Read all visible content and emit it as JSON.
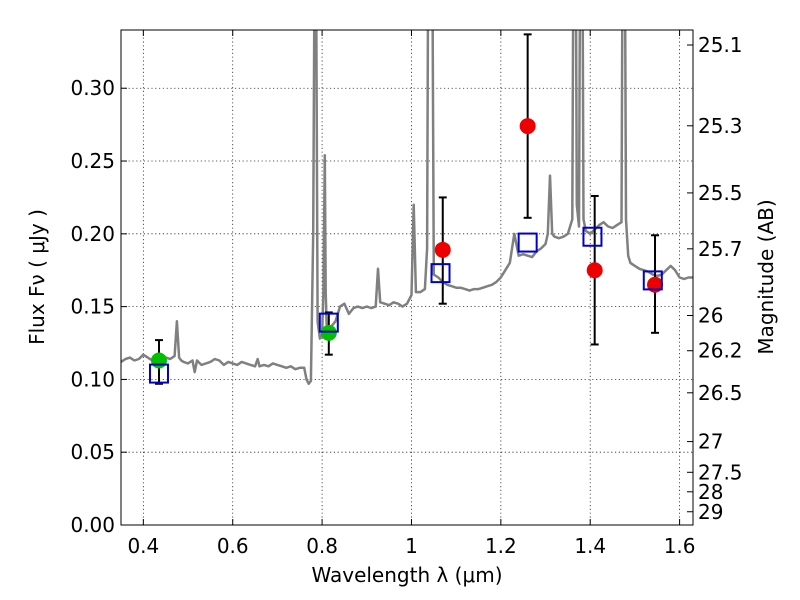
{
  "chart_data": {
    "type": "scatter",
    "title": "",
    "xlabel": "Wavelength  λ (μm)",
    "ylabel": "Flux  Fν  ( μJy )",
    "ylabel_right": "Magnitude (AB)",
    "xlim": [
      0.35,
      1.63
    ],
    "ylim": [
      0.0,
      0.34
    ],
    "grid": true,
    "x_ticks": [
      0.4,
      0.6,
      0.8,
      1.0,
      1.2,
      1.4,
      1.6
    ],
    "x_tick_labels": [
      "0.4",
      "0.6",
      "0.8",
      "1",
      "1.2",
      "1.4",
      "1.6"
    ],
    "y_ticks": [
      0.0,
      0.05,
      0.1,
      0.15,
      0.2,
      0.25,
      0.3
    ],
    "y_tick_labels": [
      "0.00",
      "0.05",
      "0.10",
      "0.15",
      "0.20",
      "0.25",
      "0.30"
    ],
    "right_ticks": [
      {
        "label": "25.1",
        "flux": 0.3297
      },
      {
        "label": "25.3",
        "flux": 0.2742
      },
      {
        "label": "25.5",
        "flux": 0.2281
      },
      {
        "label": "25.7",
        "flux": 0.1897
      },
      {
        "label": "26",
        "flux": 0.1439
      },
      {
        "label": "26.2",
        "flux": 0.1197
      },
      {
        "label": "26.5",
        "flux": 0.0908
      },
      {
        "label": "27",
        "flux": 0.0573
      },
      {
        "label": "27.5",
        "flux": 0.0362
      },
      {
        "label": "28",
        "flux": 0.0228
      },
      {
        "label": "29",
        "flux": 0.0091
      }
    ],
    "series": [
      {
        "kind": "line",
        "color": "#808080",
        "x": [
          0.35,
          0.36,
          0.37,
          0.38,
          0.39,
          0.4,
          0.41,
          0.42,
          0.43,
          0.44,
          0.45,
          0.46,
          0.47,
          0.475,
          0.48,
          0.485,
          0.49,
          0.5,
          0.51,
          0.515,
          0.52,
          0.53,
          0.54,
          0.55,
          0.56,
          0.57,
          0.58,
          0.59,
          0.6,
          0.61,
          0.62,
          0.63,
          0.64,
          0.65,
          0.656,
          0.66,
          0.67,
          0.68,
          0.69,
          0.7,
          0.71,
          0.72,
          0.73,
          0.74,
          0.75,
          0.76,
          0.765,
          0.77,
          0.775,
          0.78,
          0.785,
          0.79,
          0.795,
          0.8,
          0.803,
          0.806,
          0.808,
          0.81,
          0.815,
          0.82,
          0.83,
          0.84,
          0.85,
          0.86,
          0.87,
          0.88,
          0.89,
          0.9,
          0.91,
          0.92,
          0.925,
          0.93,
          0.94,
          0.95,
          0.96,
          0.97,
          0.98,
          0.99,
          1.0,
          1.005,
          1.01,
          1.02,
          1.03,
          1.035,
          1.04,
          1.045,
          1.05,
          1.06,
          1.07,
          1.08,
          1.09,
          1.1,
          1.11,
          1.12,
          1.13,
          1.14,
          1.15,
          1.16,
          1.17,
          1.18,
          1.19,
          1.2,
          1.21,
          1.22,
          1.23,
          1.24,
          1.25,
          1.26,
          1.27,
          1.28,
          1.29,
          1.3,
          1.305,
          1.31,
          1.315,
          1.32,
          1.33,
          1.34,
          1.35,
          1.36,
          1.365,
          1.37,
          1.375,
          1.38,
          1.385,
          1.39,
          1.4,
          1.41,
          1.42,
          1.43,
          1.44,
          1.45,
          1.46,
          1.47,
          1.475,
          1.48,
          1.485,
          1.49,
          1.5,
          1.51,
          1.52,
          1.53,
          1.54,
          1.55,
          1.56,
          1.57,
          1.58,
          1.59,
          1.6,
          1.61,
          1.62,
          1.63
        ],
        "y": [
          0.112,
          0.114,
          0.115,
          0.113,
          0.114,
          0.117,
          0.115,
          0.113,
          0.114,
          0.116,
          0.115,
          0.114,
          0.116,
          0.14,
          0.115,
          0.113,
          0.112,
          0.111,
          0.113,
          0.105,
          0.113,
          0.11,
          0.111,
          0.112,
          0.114,
          0.113,
          0.11,
          0.112,
          0.111,
          0.11,
          0.112,
          0.111,
          0.11,
          0.109,
          0.114,
          0.109,
          0.11,
          0.109,
          0.111,
          0.11,
          0.109,
          0.108,
          0.109,
          0.107,
          0.108,
          0.108,
          0.1,
          0.097,
          0.099,
          0.2,
          0.5,
          0.14,
          0.128,
          0.131,
          0.16,
          0.254,
          0.16,
          0.138,
          0.132,
          0.136,
          0.14,
          0.15,
          0.152,
          0.145,
          0.149,
          0.15,
          0.149,
          0.15,
          0.149,
          0.15,
          0.176,
          0.153,
          0.152,
          0.151,
          0.153,
          0.152,
          0.15,
          0.152,
          0.158,
          0.22,
          0.16,
          0.16,
          0.162,
          0.19,
          0.6,
          0.5,
          0.172,
          0.17,
          0.167,
          0.165,
          0.164,
          0.163,
          0.163,
          0.162,
          0.161,
          0.162,
          0.162,
          0.163,
          0.164,
          0.165,
          0.167,
          0.17,
          0.175,
          0.18,
          0.2,
          0.185,
          0.186,
          0.185,
          0.184,
          0.188,
          0.19,
          0.193,
          0.2,
          0.24,
          0.2,
          0.198,
          0.197,
          0.198,
          0.2,
          0.21,
          0.6,
          0.22,
          0.205,
          0.6,
          0.21,
          0.202,
          0.2,
          0.203,
          0.206,
          0.208,
          0.205,
          0.204,
          0.206,
          0.208,
          0.6,
          0.21,
          0.185,
          0.18,
          0.178,
          0.176,
          0.175,
          0.174,
          0.172,
          0.171,
          0.172,
          0.175,
          0.178,
          0.175,
          0.17,
          0.169,
          0.17,
          0.17
        ]
      },
      {
        "kind": "points",
        "name": "",
        "color": "#00c000",
        "marker": "circle",
        "points": [
          {
            "x": 0.435,
            "y": 0.113,
            "err": [
              0.097,
              0.127
            ]
          },
          {
            "x": 0.815,
            "y": 0.132,
            "err": [
              0.117,
              0.146
            ]
          }
        ]
      },
      {
        "kind": "points",
        "name": "",
        "color": "#ee0000",
        "marker": "circle",
        "points": [
          {
            "x": 1.07,
            "y": 0.189,
            "err": [
              0.152,
              0.225
            ]
          },
          {
            "x": 1.26,
            "y": 0.274,
            "err": [
              0.211,
              0.337
            ]
          },
          {
            "x": 1.41,
            "y": 0.175,
            "err": [
              0.124,
              0.226
            ]
          },
          {
            "x": 1.545,
            "y": 0.165,
            "err": [
              0.132,
              0.199
            ]
          }
        ]
      },
      {
        "kind": "points",
        "name": "",
        "color": "#0000cc",
        "marker": "open-square",
        "points": [
          {
            "x": 0.435,
            "y": 0.104
          },
          {
            "x": 0.815,
            "y": 0.139
          },
          {
            "x": 1.065,
            "y": 0.173
          },
          {
            "x": 1.26,
            "y": 0.194
          },
          {
            "x": 1.405,
            "y": 0.198
          },
          {
            "x": 1.54,
            "y": 0.168
          }
        ]
      }
    ]
  }
}
